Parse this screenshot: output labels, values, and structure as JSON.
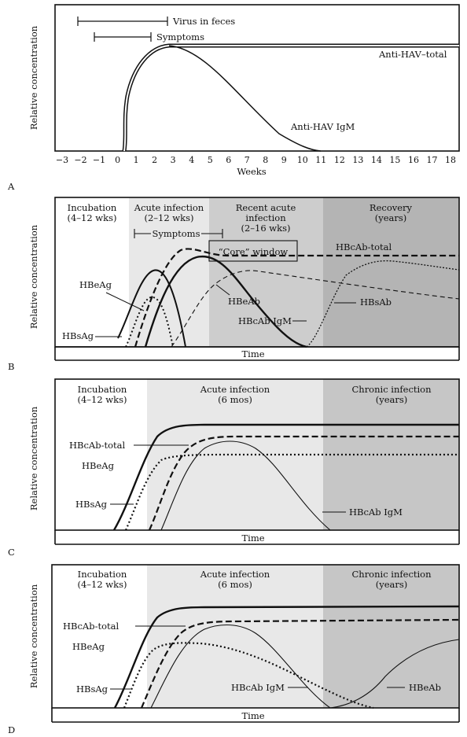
{
  "chart_data": [
    {
      "panel_label": "A",
      "type": "line",
      "xlabel": "Weeks",
      "ylabel": "Relative concentration",
      "x_ticks": [
        -3,
        -2,
        -1,
        0,
        1,
        2,
        3,
        4,
        5,
        6,
        7,
        8,
        9,
        10,
        11,
        12,
        13,
        14,
        15,
        16,
        17,
        18
      ],
      "ylim": [
        0,
        100
      ],
      "series": [
        {
          "name": "Anti-HAV–total",
          "style": "double",
          "x": [
            0.8,
            1.0,
            1.2,
            1.5,
            2,
            2.5,
            3,
            3.5,
            4,
            5,
            6,
            8,
            10,
            12,
            14,
            16,
            18
          ],
          "y": [
            0,
            10,
            35,
            62,
            82,
            92,
            97,
            100,
            100,
            100,
            100,
            100,
            100,
            100,
            100,
            100,
            100
          ]
        },
        {
          "name": "Anti-HAV IgM",
          "style": "solid",
          "x": [
            3.5,
            5,
            6,
            7,
            8,
            9,
            10,
            11,
            12
          ],
          "y": [
            100,
            90,
            78,
            63,
            48,
            33,
            18,
            6,
            0
          ]
        }
      ],
      "intervals": [
        {
          "name": "Virus in feces",
          "from": -2,
          "to": 3.5
        },
        {
          "name": "Symptoms",
          "from": -1,
          "to": 2.5
        }
      ]
    },
    {
      "panel_label": "B",
      "type": "line",
      "xlabel": "Time",
      "ylabel": "Relative concentration",
      "phases": [
        {
          "name": "Incubation",
          "duration": "(4–12 wks)"
        },
        {
          "name": "Acute infection",
          "duration": "(2–12 wks)"
        },
        {
          "name": "Recent acute infection",
          "line1": "Recent acute",
          "line2": "infection",
          "duration": "(2–16 wks)"
        },
        {
          "name": "Recovery",
          "duration": "(years)"
        }
      ],
      "annotations": {
        "symptoms": "Symptoms",
        "core_window": "“Core” window"
      },
      "series": [
        {
          "name": "HBsAg",
          "style": "solid"
        },
        {
          "name": "HBeAg",
          "style": "dotted"
        },
        {
          "name": "HBcAb-total",
          "style": "dashed"
        },
        {
          "name": "HBeAb",
          "style": "thin-dashed"
        },
        {
          "name": "HBcAb IgM",
          "style": "solid"
        },
        {
          "name": "HBsAb",
          "style": "dotted"
        }
      ]
    },
    {
      "panel_label": "C",
      "type": "line",
      "xlabel": "Time",
      "ylabel": "Relative concentration",
      "phases": [
        {
          "name": "Incubation",
          "duration": "(4–12 wks)"
        },
        {
          "name": "Acute infection",
          "duration": "(6 mos)"
        },
        {
          "name": "Chronic infection",
          "duration": "(years)"
        }
      ],
      "series": [
        {
          "name": "HBsAg",
          "style": "solid"
        },
        {
          "name": "HBcAb-total",
          "style": "dashed"
        },
        {
          "name": "HBeAg",
          "style": "dotted"
        },
        {
          "name": "HBcAb IgM",
          "style": "thin"
        }
      ]
    },
    {
      "panel_label": "D",
      "type": "line",
      "xlabel": "Time",
      "ylabel": "Relative concentration",
      "phases": [
        {
          "name": "Incubation",
          "duration": "(4–12 wks)"
        },
        {
          "name": "Acute infection",
          "duration": "(6 mos)"
        },
        {
          "name": "Chronic infection",
          "duration": "(years)"
        }
      ],
      "series": [
        {
          "name": "HBsAg",
          "style": "solid"
        },
        {
          "name": "HBcAb-total",
          "style": "dashed"
        },
        {
          "name": "HBeAg",
          "style": "dotted"
        },
        {
          "name": "HBcAb IgM",
          "style": "thin"
        },
        {
          "name": "HBeAb",
          "style": "thin"
        }
      ]
    }
  ],
  "colors": {
    "incubation": "#ffffff",
    "acute": "#e8e8e8",
    "recent": "#cdcdcd",
    "late": "#b4b4b4",
    "ink": "#111111"
  }
}
